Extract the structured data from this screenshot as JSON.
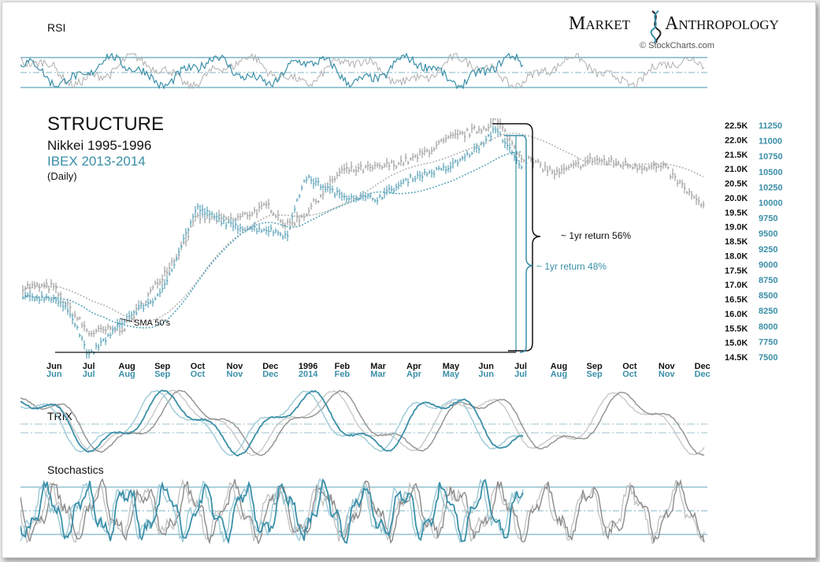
{
  "brand": {
    "name_left": "Market",
    "name_right": "Anthropology",
    "source": "© StockCharts.com"
  },
  "colors": {
    "nikkei": "#8c8c8c",
    "ibex": "#3a8fa8",
    "sma_nikkei": "#b5b5b5",
    "sma_ibex": "#5aa7bd",
    "ink": "#111111",
    "band": "#7cb5c6"
  },
  "panels": {
    "rsi_label": "RSI",
    "trix_label": "TRIX",
    "stoch_label": "Stochastics"
  },
  "chart_data": {
    "type": "line",
    "title": "STRUCTURE",
    "series": [
      {
        "name": "Nikkei 1995-1996",
        "axis": "left",
        "color": "#8c8c8c"
      },
      {
        "name": "IBEX 2013-2014",
        "axis": "right",
        "color": "#3a8fa8"
      }
    ],
    "subtitle_note": "(Daily)",
    "annotations": {
      "sma": "SMA 50's",
      "nikkei_return": "~ 1yr return 56%",
      "ibex_return": "~ 1yr return 48%"
    },
    "x_labels_nikkei": [
      "Jun",
      "Jul",
      "Aug",
      "Sep",
      "Oct",
      "Nov",
      "Dec",
      "1996",
      "Feb",
      "Mar",
      "Apr",
      "May",
      "Jun",
      "Jul",
      "Aug",
      "Sep",
      "Oct",
      "Nov",
      "Dec"
    ],
    "x_labels_ibex": [
      "Jun",
      "Jul",
      "Aug",
      "Sep",
      "Oct",
      "Nov",
      "Dec",
      "2014",
      "Feb",
      "Mar",
      "Apr",
      "May",
      "Jun",
      "Jul",
      "Aug",
      "Sep",
      "Oct",
      "Nov",
      "Dec"
    ],
    "y_left_ticks": [
      "22.5K",
      "22.0K",
      "21.5K",
      "21.0K",
      "20.5K",
      "20.0K",
      "19.5K",
      "19.0K",
      "18.5K",
      "18.0K",
      "17.5K",
      "17.0K",
      "16.5K",
      "16.0K",
      "15.5K",
      "15.0K",
      "14.5K"
    ],
    "y_right_ticks": [
      "11250",
      "11000",
      "10750",
      "10500",
      "10250",
      "10000",
      "9750",
      "9500",
      "9250",
      "9000",
      "8750",
      "8500",
      "8250",
      "8000",
      "7750",
      "7500"
    ],
    "ylim_left": [
      14500,
      22500
    ],
    "ylim_right": [
      7500,
      11250
    ],
    "nikkei_path": {
      "x": [
        0,
        1,
        2,
        3,
        3.5,
        4,
        5,
        6,
        6.5,
        7,
        8,
        9,
        10,
        11,
        12,
        12.3,
        13,
        14,
        15,
        16,
        17,
        18
      ],
      "y": [
        16900,
        15300,
        15500,
        17200,
        18100,
        19300,
        19200,
        19700,
        19000,
        19400,
        20900,
        21000,
        21300,
        22000,
        22400,
        22700,
        21400,
        20800,
        21300,
        21100,
        21000,
        19700
      ]
    },
    "ibex_path": {
      "x": [
        0,
        0.5,
        1,
        2,
        3,
        4,
        5,
        6,
        6.5,
        7,
        8,
        9,
        10,
        11,
        12,
        12.3,
        13
      ],
      "y": [
        8450,
        8200,
        7500,
        8100,
        8500,
        9900,
        9600,
        9550,
        9450,
        10400,
        10100,
        10050,
        10400,
        10550,
        10950,
        11200,
        10550
      ]
    },
    "legend": "top-left",
    "grid": false
  }
}
